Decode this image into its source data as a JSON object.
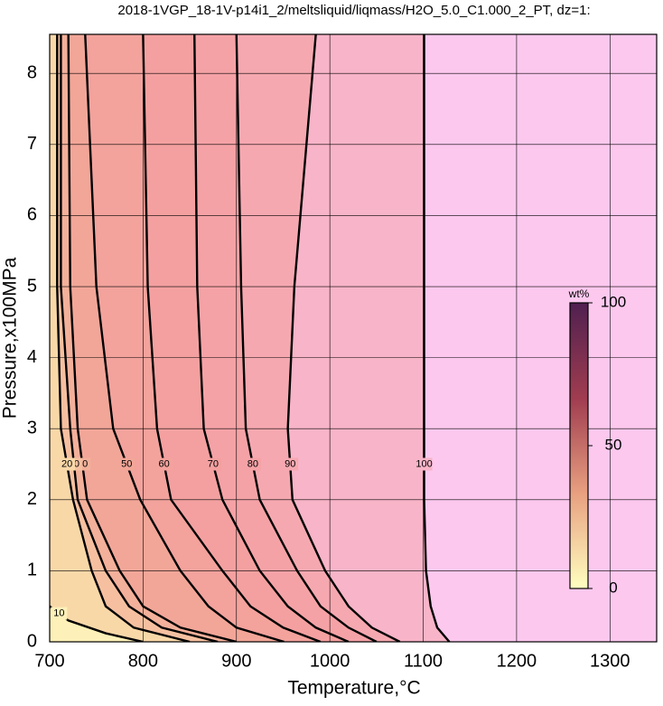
{
  "chart_data": {
    "type": "contour",
    "title": "2018-1VGP_18-1V-p14i1_2/meltsliquid/liqmass/H2O_5.0_C1.000_2_PT, dz=1:",
    "x_label": "Temperature,°C",
    "y_label": "Pressure,x100MPa",
    "xlim": [
      700,
      1350
    ],
    "xticks": [
      700,
      800,
      900,
      1000,
      1100,
      1200,
      1300
    ],
    "ylim": [
      0,
      8.55
    ],
    "yticks": [
      0,
      1,
      2,
      3,
      4,
      5,
      6,
      7,
      8
    ],
    "grid": true,
    "background": "#fcc8ee",
    "contours": [
      {
        "level": 100,
        "fill": "#f8b4c8",
        "x": [
          1128,
          1115,
          1108,
          1103,
          1101,
          1101,
          1101,
          1101
        ],
        "y": [
          0,
          0.2,
          0.5,
          1,
          2,
          3,
          5,
          8.55
        ]
      },
      {
        "level": 90,
        "fill": "#f6a8b0",
        "x": [
          1075,
          1045,
          1020,
          995,
          960,
          955,
          962,
          985
        ],
        "y": [
          0,
          0.2,
          0.5,
          1,
          2,
          3,
          5,
          8.55
        ]
      },
      {
        "level": 80,
        "fill": "#f5a2a6",
        "x": [
          1050,
          1020,
          990,
          965,
          925,
          910,
          905,
          900
        ],
        "y": [
          0,
          0.2,
          0.5,
          1,
          2,
          3,
          5,
          8.55
        ]
      },
      {
        "level": 70,
        "fill": "#f4a0a0",
        "x": [
          1020,
          985,
          955,
          925,
          885,
          865,
          858,
          855
        ],
        "y": [
          0,
          0.2,
          0.5,
          1,
          2,
          3,
          5,
          8.55
        ]
      },
      {
        "level": 60,
        "fill": "#f3a29c",
        "x": [
          990,
          950,
          915,
          885,
          830,
          815,
          805,
          800
        ],
        "y": [
          0,
          0.2,
          0.5,
          1,
          2,
          3,
          5,
          8.55
        ]
      },
      {
        "level": 50,
        "fill": "#f2a698",
        "x": [
          951,
          900,
          870,
          840,
          797,
          768,
          750,
          738
        ],
        "y": [
          0,
          0.2,
          0.5,
          1,
          2,
          3,
          5,
          8.55
        ]
      },
      {
        "level": 40,
        "fill": "#f3b09a",
        "x": [
          900,
          840,
          800,
          775,
          740,
          730,
          722,
          720
        ],
        "y": [
          0,
          0.2,
          0.5,
          1,
          2,
          3,
          5,
          8.55
        ]
      },
      {
        "level": 30,
        "fill": "#f6c0a0",
        "x": [
          880,
          820,
          785,
          760,
          730,
          722,
          712,
          712
        ],
        "y": [
          0,
          0.2,
          0.5,
          1,
          2,
          3,
          5,
          8.55
        ]
      },
      {
        "level": 20,
        "fill": "#f9d8a8",
        "x": [
          850,
          790,
          760,
          745,
          725,
          712,
          708,
          708
        ],
        "y": [
          0,
          0.2,
          0.5,
          1,
          2,
          3,
          5,
          8.55
        ]
      },
      {
        "level": 10,
        "fill": "#fdf0b8",
        "x": [
          800,
          760,
          720,
          700
        ],
        "y": [
          0,
          0.12,
          0.3,
          0.5
        ]
      }
    ],
    "colorbar": {
      "label": "wt%",
      "lim": [
        0,
        100
      ],
      "ticks": [
        0,
        50,
        100
      ],
      "colors": [
        "#ffffc0",
        "#e8a080",
        "#a03c50",
        "#502050"
      ]
    }
  }
}
